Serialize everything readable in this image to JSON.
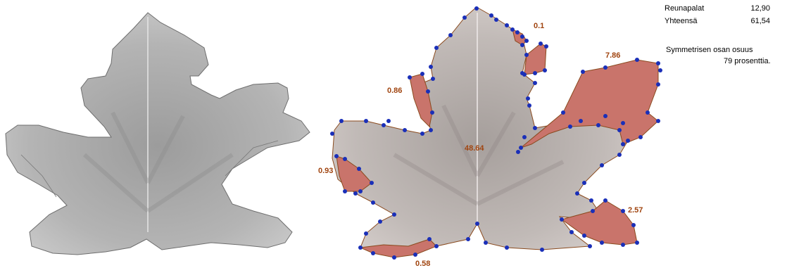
{
  "stats": {
    "rows": [
      {
        "label": "Reunapalat",
        "value": "12,90"
      },
      {
        "label": "Yhteensä",
        "value": "61,54"
      }
    ],
    "note_line1": "Symmetrisen osan osuus",
    "note_line2": "79 prosenttia."
  },
  "region_labels": {
    "center": "48.64",
    "top": "0.1",
    "upper_right": "7.86",
    "left_upper": "0.86",
    "left_lower": "0.93",
    "bottom": "0.58",
    "right_lower": "2.57"
  },
  "colors": {
    "leaf_gray": "#b9b9b9",
    "leaf_dark": "#8e8e8e",
    "region_red": "#c9746b",
    "outline_brown": "#8a4a1e",
    "point_blue": "#1a2fb8"
  }
}
